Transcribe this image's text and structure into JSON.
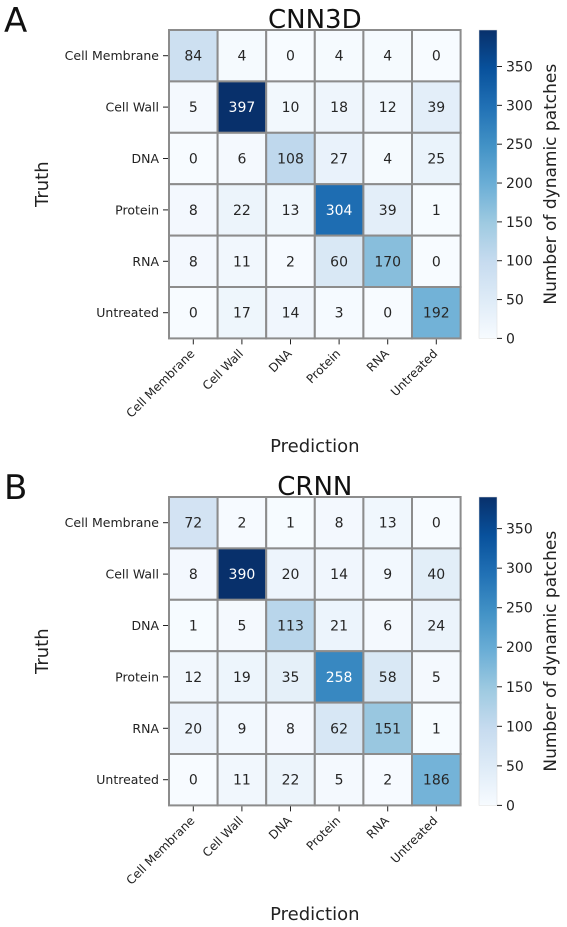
{
  "chart_data": [
    {
      "type": "heatmap",
      "panel_label": "A",
      "title": "CNN3D",
      "xlabel": "Prediction",
      "ylabel": "Truth",
      "x_categories": [
        "Cell Membrane",
        "Cell Wall",
        "DNA",
        "Protein",
        "RNA",
        "Untreated"
      ],
      "y_categories": [
        "Cell Membrane",
        "Cell Wall",
        "DNA",
        "Protein",
        "RNA",
        "Untreated"
      ],
      "values": [
        [
          84,
          4,
          0,
          4,
          4,
          0
        ],
        [
          5,
          397,
          10,
          18,
          12,
          39
        ],
        [
          0,
          6,
          108,
          27,
          4,
          25
        ],
        [
          8,
          22,
          13,
          304,
          39,
          1
        ],
        [
          8,
          11,
          2,
          60,
          170,
          0
        ],
        [
          0,
          17,
          14,
          3,
          0,
          192
        ]
      ],
      "colorbar": {
        "label": "Number of dynamic patches",
        "range": [
          0,
          397
        ],
        "ticks": [
          0,
          50,
          100,
          150,
          200,
          250,
          300,
          350
        ],
        "colormap": "Blues"
      }
    },
    {
      "type": "heatmap",
      "panel_label": "B",
      "title": "CRNN",
      "xlabel": "Prediction",
      "ylabel": "Truth",
      "x_categories": [
        "Cell Membrane",
        "Cell Wall",
        "DNA",
        "Protein",
        "RNA",
        "Untreated"
      ],
      "y_categories": [
        "Cell Membrane",
        "Cell Wall",
        "DNA",
        "Protein",
        "RNA",
        "Untreated"
      ],
      "values": [
        [
          72,
          2,
          1,
          8,
          13,
          0
        ],
        [
          8,
          390,
          20,
          14,
          9,
          40
        ],
        [
          1,
          5,
          113,
          21,
          6,
          24
        ],
        [
          12,
          19,
          35,
          258,
          58,
          5
        ],
        [
          20,
          9,
          8,
          62,
          151,
          1
        ],
        [
          0,
          11,
          22,
          5,
          2,
          186
        ]
      ],
      "colorbar": {
        "label": "Number of dynamic patches",
        "range": [
          0,
          390
        ],
        "ticks": [
          0,
          50,
          100,
          150,
          200,
          250,
          300,
          350
        ],
        "colormap": "Blues"
      }
    }
  ]
}
